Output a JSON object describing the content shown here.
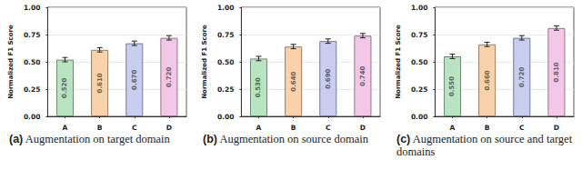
{
  "chart_data": [
    {
      "type": "bar",
      "title": "(a) Augmentation on target domain",
      "y_label": "Normalized F1 Score",
      "categories": [
        "A",
        "B",
        "C",
        "D"
      ],
      "values": [
        0.52,
        0.61,
        0.67,
        0.72
      ],
      "value_labels": [
        "0.520",
        "0.610",
        "0.670",
        "0.720"
      ],
      "errors": [
        0.02,
        0.02,
        0.02,
        0.02
      ],
      "colors": [
        "#b9e4c2",
        "#f9d2ac",
        "#c9cdef",
        "#f3c7e6"
      ],
      "ylim": [
        0,
        1
      ],
      "yticks": [
        {
          "value": 0,
          "label": "0.00"
        },
        {
          "value": 0.25,
          "label": "0.25"
        },
        {
          "value": 0.5,
          "label": "0.50"
        },
        {
          "value": 0.75,
          "label": "0.75"
        },
        {
          "value": 1,
          "label": "1.00"
        }
      ],
      "grid": true,
      "data_labels": true
    },
    {
      "type": "bar",
      "title": "(b) Augmentation on source domain",
      "y_label": "Normalized F1 Score",
      "categories": [
        "A",
        "B",
        "C",
        "D"
      ],
      "values": [
        0.53,
        0.64,
        0.69,
        0.74
      ],
      "value_labels": [
        "0.530",
        "0.640",
        "0.690",
        "0.740"
      ],
      "errors": [
        0.02,
        0.02,
        0.02,
        0.02
      ],
      "colors": [
        "#b9e4c2",
        "#f9d2ac",
        "#c9cdef",
        "#f3c7e6"
      ],
      "ylim": [
        0,
        1
      ],
      "yticks": [
        {
          "value": 0,
          "label": "0.00"
        },
        {
          "value": 0.25,
          "label": "0.25"
        },
        {
          "value": 0.5,
          "label": "0.50"
        },
        {
          "value": 0.75,
          "label": "0.75"
        },
        {
          "value": 1,
          "label": "1.00"
        }
      ],
      "grid": true,
      "data_labels": true
    },
    {
      "type": "bar",
      "title": "(c) Augmentation on source and target domains",
      "y_label": "Normalized F1 Score",
      "categories": [
        "A",
        "B",
        "C",
        "D"
      ],
      "values": [
        0.55,
        0.66,
        0.72,
        0.81
      ],
      "value_labels": [
        "0.550",
        "0.660",
        "0.720",
        "0.810"
      ],
      "errors": [
        0.02,
        0.02,
        0.02,
        0.02
      ],
      "colors": [
        "#b9e4c2",
        "#f9d2ac",
        "#c9cdef",
        "#f3c7e6"
      ],
      "ylim": [
        0,
        1
      ],
      "yticks": [
        {
          "value": 0,
          "label": "0.00"
        },
        {
          "value": 0.25,
          "label": "0.25"
        },
        {
          "value": 0.5,
          "label": "0.50"
        },
        {
          "value": 0.75,
          "label": "0.75"
        },
        {
          "value": 1,
          "label": "1.00"
        }
      ],
      "grid": true,
      "data_labels": true
    }
  ]
}
